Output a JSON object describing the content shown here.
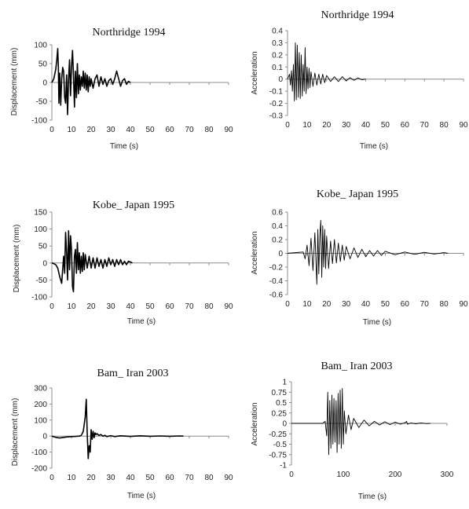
{
  "chart_data": [
    {
      "type": "line",
      "title": "Northridge 1994",
      "xlabel": "Time (s)",
      "ylabel": "Displacement (mm)",
      "xlim": [
        0,
        90
      ],
      "ylim": [
        -100,
        100
      ],
      "xticks": [
        0,
        10,
        20,
        30,
        40,
        50,
        60,
        70,
        80,
        90
      ],
      "yticks": [
        -100,
        -50,
        0,
        50,
        100
      ],
      "ytick_labels": [
        "-100",
        "-50",
        "0",
        "50",
        "100"
      ],
      "series": [
        {
          "x": [
            0,
            1,
            2,
            2.5,
            3,
            3.3,
            3.6,
            4,
            4.5,
            5,
            5.5,
            6,
            6.5,
            7,
            7.5,
            8,
            8.5,
            9,
            9.5,
            10,
            10.5,
            11,
            11.5,
            12,
            12.5,
            13,
            13.5,
            14,
            14.5,
            15,
            15.5,
            16,
            16.5,
            17,
            17.5,
            18,
            18.5,
            19,
            19.5,
            20,
            21,
            22,
            23,
            24,
            25,
            26,
            27,
            28,
            29,
            30,
            31,
            32,
            33,
            34,
            35,
            36,
            37,
            38,
            39,
            40
          ],
          "y": [
            0,
            10,
            35,
            60,
            90,
            40,
            -55,
            25,
            -60,
            10,
            40,
            30,
            -40,
            -55,
            20,
            -85,
            10,
            60,
            -35,
            40,
            85,
            20,
            -65,
            30,
            -40,
            50,
            -30,
            20,
            -20,
            15,
            -10,
            30,
            -15,
            25,
            -20,
            20,
            -25,
            15,
            -10,
            10,
            -15,
            10,
            20,
            -10,
            15,
            -5,
            10,
            -10,
            5,
            10,
            -5,
            10,
            30,
            10,
            -10,
            5,
            10,
            -5,
            3,
            0
          ]
        }
      ]
    },
    {
      "type": "line",
      "title": "Northridge 1994",
      "xlabel": "Time (s)",
      "ylabel": "Acceleration",
      "xlim": [
        0,
        90
      ],
      "ylim": [
        -0.3,
        0.4
      ],
      "xticks": [
        0,
        10,
        20,
        30,
        40,
        50,
        60,
        70,
        80,
        90
      ],
      "yticks": [
        -0.3,
        -0.2,
        -0.1,
        0,
        0.1,
        0.2,
        0.3,
        0.4
      ],
      "ytick_labels": [
        "-0.3",
        "-0.2",
        "-0.1",
        "0",
        "0.1",
        "0.2",
        "0.3",
        "0.4"
      ],
      "series": [
        {
          "x": [
            0,
            1,
            1.5,
            2,
            2.5,
            3,
            3.5,
            4,
            4.5,
            5,
            5.5,
            6,
            6.5,
            7,
            7.5,
            8,
            8.5,
            9,
            9.5,
            10,
            10.5,
            11,
            11.5,
            12,
            13,
            14,
            15,
            16,
            17,
            18,
            19,
            20,
            22,
            24,
            26,
            28,
            30,
            32,
            34,
            36,
            38,
            40
          ],
          "y": [
            0,
            0.04,
            -0.05,
            0.07,
            -0.1,
            0.12,
            -0.18,
            0.3,
            -0.17,
            0.28,
            -0.15,
            0.22,
            -0.16,
            0.2,
            -0.14,
            0.12,
            -0.1,
            0.26,
            -0.12,
            0.1,
            -0.08,
            0.09,
            -0.07,
            0.06,
            -0.06,
            0.05,
            -0.05,
            0.04,
            -0.04,
            0.04,
            -0.03,
            0.03,
            -0.02,
            0.02,
            -0.02,
            0.02,
            -0.015,
            0.012,
            -0.01,
            0.01,
            -0.005,
            0
          ]
        }
      ]
    },
    {
      "type": "line",
      "title": "Kobe_ Japan 1995",
      "xlabel": "Time (s)",
      "ylabel": "Displacement (mm)",
      "xlim": [
        0,
        90
      ],
      "ylim": [
        -100,
        150
      ],
      "xticks": [
        0,
        10,
        20,
        30,
        40,
        50,
        60,
        70,
        80,
        90
      ],
      "yticks": [
        -100,
        -50,
        0,
        50,
        100,
        150
      ],
      "ytick_labels": [
        "-100",
        "-50",
        "0",
        "50",
        "100",
        "150"
      ],
      "series": [
        {
          "x": [
            0,
            1,
            2,
            3,
            4,
            5,
            6,
            6.5,
            7,
            7.5,
            8,
            8.5,
            9,
            9.5,
            10,
            10.5,
            11,
            11.5,
            12,
            12.5,
            13,
            13.5,
            14,
            14.5,
            15,
            15.5,
            16,
            16.5,
            17,
            18,
            19,
            20,
            21,
            22,
            23,
            24,
            25,
            26,
            27,
            28,
            29,
            30,
            31,
            32,
            33,
            34,
            35,
            36,
            37,
            38,
            39,
            40,
            41
          ],
          "y": [
            0,
            -2,
            -5,
            -15,
            -40,
            -60,
            20,
            -30,
            90,
            30,
            -50,
            95,
            -20,
            80,
            40,
            -70,
            -85,
            20,
            40,
            -30,
            60,
            -20,
            30,
            -30,
            20,
            -25,
            30,
            -20,
            25,
            -15,
            20,
            -15,
            15,
            -15,
            15,
            -10,
            10,
            -15,
            10,
            -10,
            15,
            -5,
            10,
            -10,
            10,
            -5,
            10,
            -5,
            5,
            -5,
            5,
            3,
            0
          ]
        }
      ]
    },
    {
      "type": "line",
      "title": "Kobe_ Japan 1995",
      "xlabel": "Time (s)",
      "ylabel": "Acceleration",
      "xlim": [
        0,
        90
      ],
      "ylim": [
        -0.6,
        0.6
      ],
      "xticks": [
        0,
        10,
        20,
        30,
        40,
        50,
        60,
        70,
        80,
        90
      ],
      "yticks": [
        -0.6,
        -0.4,
        -0.2,
        0,
        0.2,
        0.4,
        0.6
      ],
      "ytick_labels": [
        "-0.6",
        "-0.4",
        "-0.2",
        "0",
        "0.2",
        "0.4",
        "0.6"
      ],
      "series": [
        {
          "x": [
            0,
            8,
            9,
            10,
            11,
            12,
            13,
            14,
            15,
            15.5,
            16,
            16.5,
            17,
            17.5,
            18,
            18.5,
            19,
            19.5,
            20,
            21,
            22,
            23,
            24,
            25,
            26,
            27,
            28,
            29,
            30,
            32,
            34,
            36,
            38,
            40,
            42,
            44,
            46,
            48,
            50,
            55,
            60,
            65,
            70,
            75,
            80,
            82
          ],
          "y": [
            0,
            0.02,
            -0.08,
            0.12,
            -0.18,
            0.22,
            -0.25,
            0.3,
            -0.45,
            0.35,
            -0.3,
            0.25,
            0.48,
            -0.35,
            0.4,
            -0.2,
            0.35,
            -0.22,
            0.25,
            -0.22,
            0.18,
            -0.15,
            0.2,
            -0.14,
            0.15,
            -0.12,
            0.12,
            -0.1,
            0.1,
            -0.08,
            0.08,
            -0.06,
            0.06,
            -0.05,
            0.04,
            -0.04,
            0.04,
            -0.03,
            0.03,
            -0.02,
            0.02,
            -0.015,
            0.015,
            -0.01,
            0.01,
            0
          ]
        }
      ]
    },
    {
      "type": "line",
      "title": "Bam_ Iran 2003",
      "xlabel": "Time (s)",
      "ylabel": "Displacement (mm)",
      "xlim": [
        0,
        90
      ],
      "ylim": [
        -200,
        300
      ],
      "xticks": [
        0,
        10,
        20,
        30,
        40,
        50,
        60,
        70,
        80,
        90
      ],
      "yticks": [
        -200,
        -100,
        0,
        100,
        200,
        300
      ],
      "ytick_labels": [
        "-200",
        "-100",
        "0",
        "100",
        "200",
        "300"
      ],
      "series": [
        {
          "x": [
            0,
            2,
            4,
            6,
            8,
            10,
            12,
            14,
            15,
            16,
            17,
            17.5,
            18,
            18.5,
            19,
            19.5,
            20,
            20.5,
            21,
            21.5,
            22,
            22.5,
            23,
            24,
            25,
            26,
            27,
            28,
            30,
            32,
            35,
            40,
            45,
            50,
            55,
            60,
            65,
            67
          ],
          "y": [
            0,
            -8,
            -12,
            -8,
            -5,
            -3,
            -2,
            0,
            5,
            30,
            120,
            230,
            20,
            -140,
            -60,
            -100,
            40,
            -20,
            30,
            -10,
            20,
            10,
            15,
            5,
            10,
            0,
            5,
            -3,
            3,
            -3,
            2,
            -2,
            2,
            -1,
            1,
            -1,
            1,
            0
          ]
        }
      ]
    },
    {
      "type": "line",
      "title": "Bam_ Iran 2003",
      "xlabel": "Time (s)",
      "ylabel": "Acceleration",
      "xlim": [
        0,
        300
      ],
      "ylim": [
        -1,
        1
      ],
      "xticks": [
        0,
        100,
        200,
        300
      ],
      "yticks": [
        -1,
        -0.75,
        -0.5,
        -0.25,
        0,
        0.25,
        0.5,
        0.75,
        1
      ],
      "ytick_labels": [
        "-1",
        "-0.75",
        "-0.5",
        "-0.25",
        "0",
        "0.25",
        "0.5",
        "0.75",
        "1"
      ],
      "series": [
        {
          "x": [
            0,
            60,
            65,
            68,
            70,
            72,
            74,
            76,
            78,
            80,
            82,
            84,
            86,
            88,
            90,
            92,
            94,
            96,
            98,
            100,
            102,
            105,
            110,
            115,
            120,
            130,
            140,
            150,
            160,
            170,
            180,
            190,
            200,
            210,
            220,
            222,
            224,
            230,
            240,
            250,
            260,
            268
          ],
          "y": [
            0,
            0,
            0.05,
            -0.3,
            0.75,
            -0.75,
            0.55,
            -0.6,
            0.68,
            -0.5,
            0.6,
            -0.45,
            0.55,
            -0.7,
            0.72,
            -0.5,
            0.8,
            -0.6,
            0.84,
            -0.5,
            0.3,
            -0.25,
            0.2,
            -0.15,
            0.12,
            -0.1,
            0.08,
            -0.06,
            0.05,
            -0.04,
            0.04,
            -0.03,
            0.03,
            -0.02,
            0.02,
            0.05,
            -0.02,
            0.01,
            -0.01,
            0.01,
            -0.005,
            0
          ]
        }
      ]
    }
  ]
}
